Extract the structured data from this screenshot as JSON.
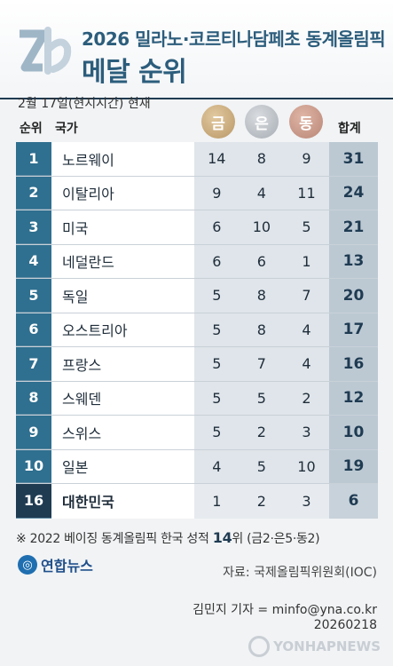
{
  "header": {
    "title_line1": "2026 밀라노·코르티나담페초 동계올림픽",
    "title_line2": "메달 순위"
  },
  "date_note": "2월 17일(현지시간) 현재",
  "columns": {
    "rank": "순위",
    "country": "국가",
    "gold": "금",
    "silver": "은",
    "bronze": "동",
    "total": "합계"
  },
  "rows": [
    {
      "rank": "1",
      "country": "노르웨이",
      "gold": "14",
      "silver": "8",
      "bronze": "9",
      "total": "31"
    },
    {
      "rank": "2",
      "country": "이탈리아",
      "gold": "9",
      "silver": "4",
      "bronze": "11",
      "total": "24"
    },
    {
      "rank": "3",
      "country": "미국",
      "gold": "6",
      "silver": "10",
      "bronze": "5",
      "total": "21"
    },
    {
      "rank": "4",
      "country": "네덜란드",
      "gold": "6",
      "silver": "6",
      "bronze": "1",
      "total": "13"
    },
    {
      "rank": "5",
      "country": "독일",
      "gold": "5",
      "silver": "8",
      "bronze": "7",
      "total": "20"
    },
    {
      "rank": "6",
      "country": "오스트리아",
      "gold": "5",
      "silver": "8",
      "bronze": "4",
      "total": "17"
    },
    {
      "rank": "7",
      "country": "프랑스",
      "gold": "5",
      "silver": "7",
      "bronze": "4",
      "total": "16"
    },
    {
      "rank": "8",
      "country": "스웨덴",
      "gold": "5",
      "silver": "5",
      "bronze": "2",
      "total": "12"
    },
    {
      "rank": "9",
      "country": "스위스",
      "gold": "5",
      "silver": "2",
      "bronze": "3",
      "total": "10"
    },
    {
      "rank": "10",
      "country": "일본",
      "gold": "4",
      "silver": "5",
      "bronze": "10",
      "total": "19"
    }
  ],
  "korea_row": {
    "rank": "16",
    "country": "대한민국",
    "gold": "1",
    "silver": "2",
    "bronze": "3",
    "total": "6"
  },
  "footnote": {
    "prefix": "※ 2022 베이징 동계올림픽 한국 성적 ",
    "rank_value": "14",
    "suffix": "위 (금2·은5·동2)"
  },
  "logo_text": "연합뉴스",
  "source": "자료: 국제올림픽위원회(IOC)",
  "credit": "김민지 기자 = minfo@yna.co.kr",
  "date_stamp": "20260218",
  "watermark": "YONHAPNEWS",
  "colors": {
    "title": "#2c5d7c",
    "rank_bg": "#2f6f8f",
    "korea_rank_bg": "#1f3b52",
    "medal_gold": "#c9a878",
    "medal_silver": "#b8bdc3",
    "medal_bronze": "#c7978a"
  }
}
